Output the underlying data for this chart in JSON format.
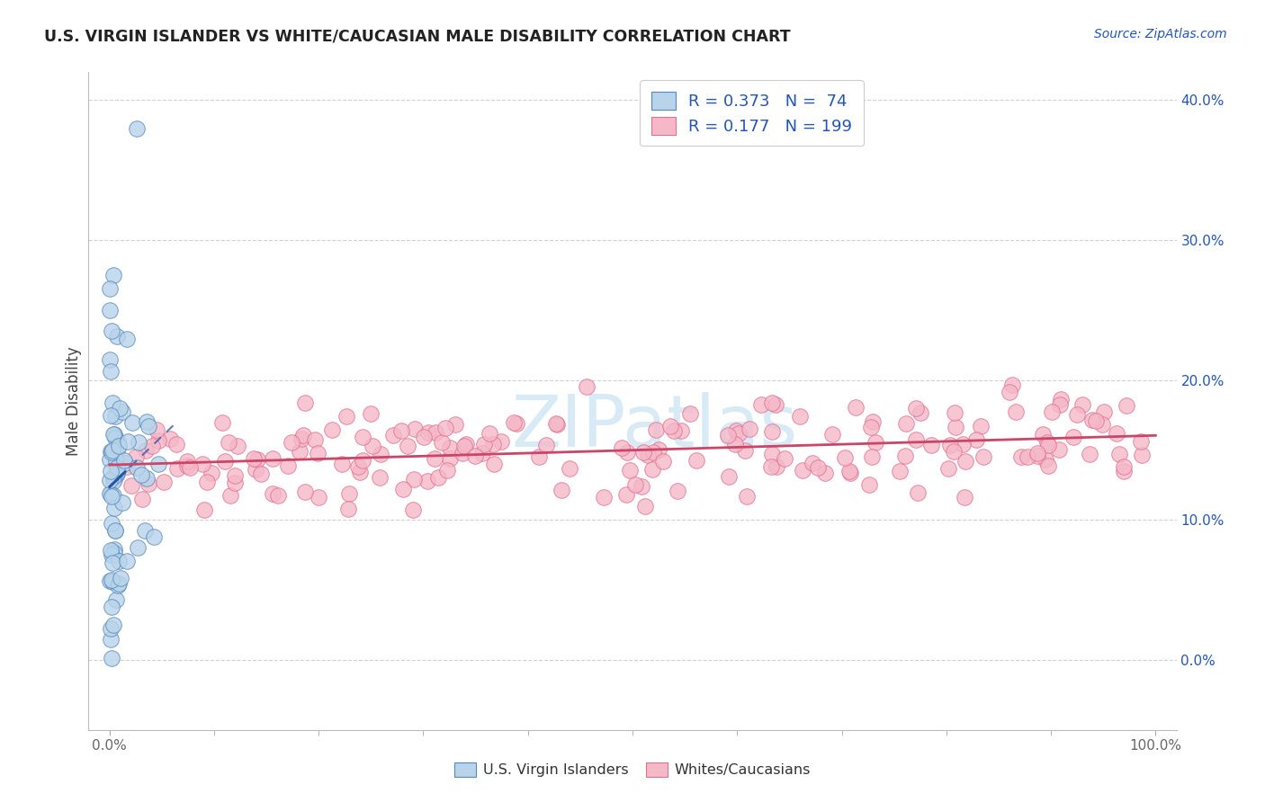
{
  "title": "U.S. VIRGIN ISLANDER VS WHITE/CAUCASIAN MALE DISABILITY CORRELATION CHART",
  "source": "Source: ZipAtlas.com",
  "ylabel": "Male Disability",
  "xlim": [
    -2,
    102
  ],
  "ylim": [
    -5,
    42
  ],
  "yticks": [
    0,
    10,
    20,
    30,
    40
  ],
  "ytick_labels": [
    "0.0%",
    "10.0%",
    "20.0%",
    "30.0%",
    "40.0%"
  ],
  "blue_R": 0.373,
  "blue_N": 74,
  "pink_R": 0.177,
  "pink_N": 199,
  "blue_color": "#b8d4ea",
  "blue_edge": "#5588bb",
  "pink_color": "#f5b8c8",
  "pink_edge": "#e07090",
  "blue_line_color": "#2255aa",
  "pink_line_color": "#cc4466",
  "watermark_color": "#d8eaf5",
  "legend_label_blue": "U.S. Virgin Islanders",
  "legend_label_pink": "Whites/Caucasians",
  "background_color": "#ffffff",
  "grid_color": "#cccccc",
  "title_color": "#222222",
  "axis_label_color": "#444444",
  "legend_text_color": "#2255bb",
  "tick_label_color": "#666666",
  "blue_scatter_seed": 10,
  "pink_scatter_seed": 42
}
